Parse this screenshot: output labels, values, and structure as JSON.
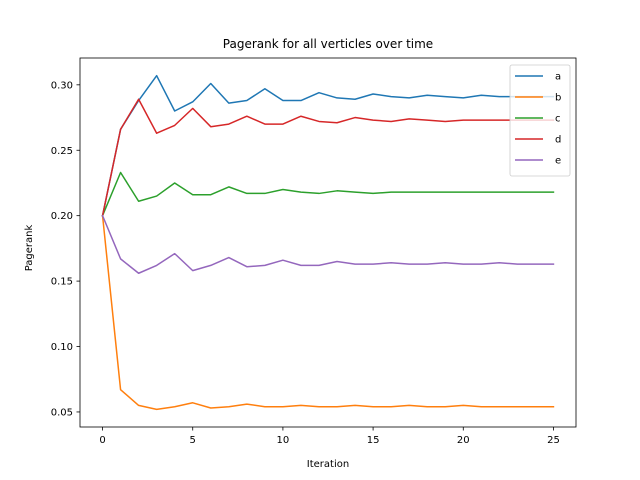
{
  "chart_data": {
    "type": "line",
    "title": "Pagerank for all verticles over time",
    "xlabel": "Iteration",
    "ylabel": "Pagerank",
    "xlim": [
      -1.25,
      26.25
    ],
    "ylim": [
      0.0385,
      0.3205
    ],
    "xticks": [
      0,
      5,
      10,
      15,
      20,
      25
    ],
    "yticks": [
      0.05,
      0.1,
      0.15,
      0.2,
      0.25,
      0.3
    ],
    "ytick_labels": [
      "0.05",
      "0.10",
      "0.15",
      "0.20",
      "0.25",
      "0.30"
    ],
    "grid": false,
    "legend_position": "top-right",
    "x": [
      0,
      1,
      2,
      3,
      4,
      5,
      6,
      7,
      8,
      9,
      10,
      11,
      12,
      13,
      14,
      15,
      16,
      17,
      18,
      19,
      20,
      21,
      22,
      23,
      24,
      25
    ],
    "series": [
      {
        "name": "a",
        "color": "#1f77b4",
        "values": [
          0.2,
          0.266,
          0.288,
          0.307,
          0.28,
          0.287,
          0.301,
          0.286,
          0.288,
          0.297,
          0.288,
          0.288,
          0.294,
          0.29,
          0.289,
          0.293,
          0.291,
          0.29,
          0.292,
          0.291,
          0.29,
          0.292,
          0.291,
          0.291,
          0.291,
          0.291
        ]
      },
      {
        "name": "b",
        "color": "#ff7f0e",
        "values": [
          0.2,
          0.067,
          0.055,
          0.052,
          0.054,
          0.057,
          0.053,
          0.054,
          0.056,
          0.054,
          0.054,
          0.055,
          0.054,
          0.054,
          0.055,
          0.054,
          0.054,
          0.055,
          0.054,
          0.054,
          0.055,
          0.054,
          0.054,
          0.054,
          0.054,
          0.054
        ]
      },
      {
        "name": "c",
        "color": "#2ca02c",
        "values": [
          0.2,
          0.233,
          0.211,
          0.215,
          0.225,
          0.216,
          0.216,
          0.222,
          0.217,
          0.217,
          0.22,
          0.218,
          0.217,
          0.219,
          0.218,
          0.217,
          0.218,
          0.218,
          0.218,
          0.218,
          0.218,
          0.218,
          0.218,
          0.218,
          0.218,
          0.218
        ]
      },
      {
        "name": "d",
        "color": "#d62728",
        "values": [
          0.2,
          0.266,
          0.289,
          0.263,
          0.269,
          0.282,
          0.268,
          0.27,
          0.276,
          0.27,
          0.27,
          0.276,
          0.272,
          0.271,
          0.275,
          0.273,
          0.272,
          0.274,
          0.273,
          0.272,
          0.273,
          0.273,
          0.273,
          0.273,
          0.273,
          0.273
        ]
      },
      {
        "name": "e",
        "color": "#9467bd",
        "values": [
          0.2,
          0.167,
          0.156,
          0.162,
          0.171,
          0.158,
          0.162,
          0.168,
          0.161,
          0.162,
          0.166,
          0.162,
          0.162,
          0.165,
          0.163,
          0.163,
          0.164,
          0.163,
          0.163,
          0.164,
          0.163,
          0.163,
          0.164,
          0.163,
          0.163,
          0.163
        ]
      }
    ]
  }
}
